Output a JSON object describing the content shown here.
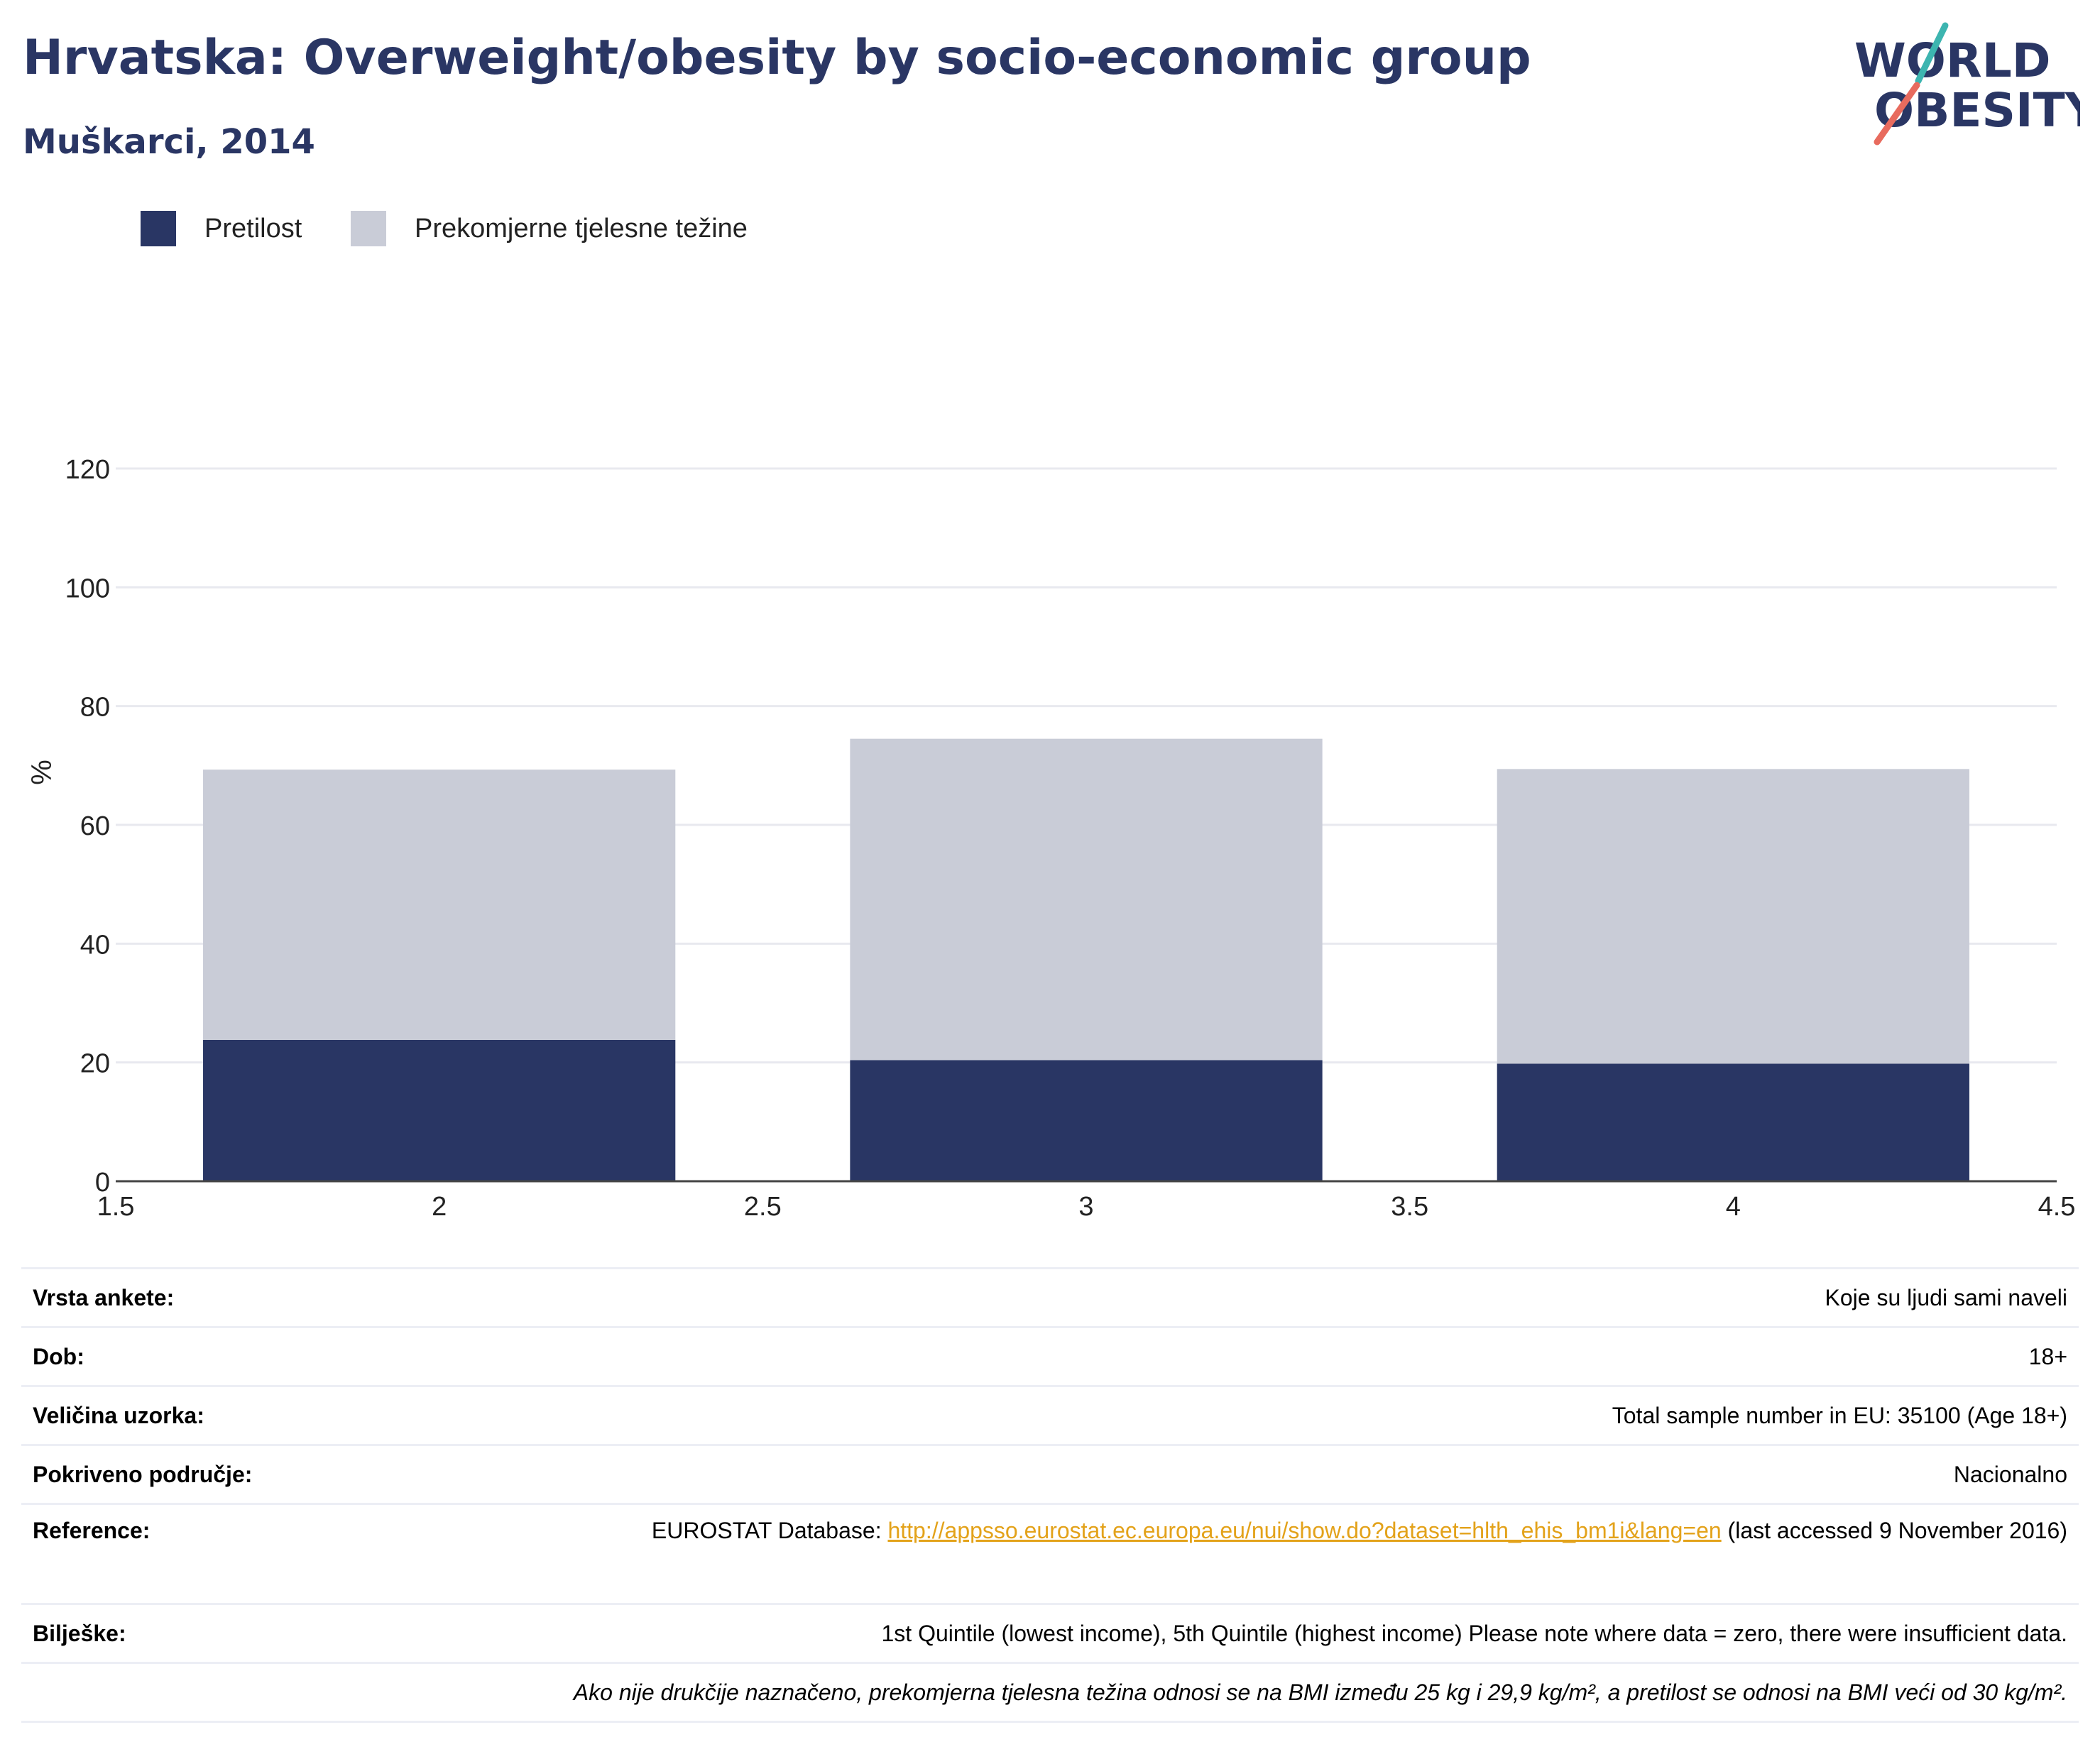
{
  "header": {
    "title": "Hrvatska: Overweight/obesity by socio-economic group",
    "subtitle": "Muškarci, 2014"
  },
  "logo": {
    "line1": "WORLD",
    "line2": "OBESITY"
  },
  "colors": {
    "obesity": "#293664",
    "overweight": "#c9ccd7",
    "title": "#2a3664",
    "link": "#e3a21a",
    "logo_teal": "#3db5b0",
    "logo_coral": "#e86b5e"
  },
  "chart_data": {
    "type": "bar",
    "stacked": true,
    "x": [
      2,
      3,
      4
    ],
    "xlim": [
      1.5,
      4.5
    ],
    "xticks": [
      "1.5",
      "2",
      "2.5",
      "3",
      "3.5",
      "4",
      "4.5"
    ],
    "ylim": [
      0,
      120
    ],
    "yticks": [
      "0",
      "20",
      "40",
      "60",
      "80",
      "100",
      "120"
    ],
    "ylabel": "%",
    "grid": true,
    "legend_position": "top-left",
    "series": [
      {
        "name": "Pretilost",
        "values": [
          23.8,
          20.4,
          19.8
        ]
      },
      {
        "name": "Prekomjerne tjelesne težine",
        "values": [
          45.5,
          54.1,
          49.6
        ]
      }
    ]
  },
  "info": {
    "survey_type": {
      "label": "Vrsta ankete:",
      "value": "Koje su ljudi sami naveli"
    },
    "age": {
      "label": "Dob:",
      "value": "18+"
    },
    "sample_size": {
      "label": "Veličina uzorka:",
      "value": "Total sample number in EU: 35100 (Age 18+)"
    },
    "coverage": {
      "label": "Pokriveno područje:",
      "value": "Nacionalno"
    },
    "reference": {
      "label": "Reference:",
      "prefix": "EUROSTAT Database: ",
      "link": "http://appsso.eurostat.ec.europa.eu/nui/show.do?dataset=hlth_ehis_bm1i&lang=en",
      "suffix": " (last accessed 9 November 2016)"
    },
    "notes": {
      "label": "Bilješke:",
      "value": "1st Quintile (lowest income), 5th Quintile (highest income) Please note where data = zero, there were insufficient data."
    },
    "footnote": "Ako nije drukčije naznačeno, prekomjerna tjelesna težina odnosi se na BMI između 25 kg i 29,9 kg/m², a pretilost se odnosi na BMI veći od 30 kg/m²."
  }
}
